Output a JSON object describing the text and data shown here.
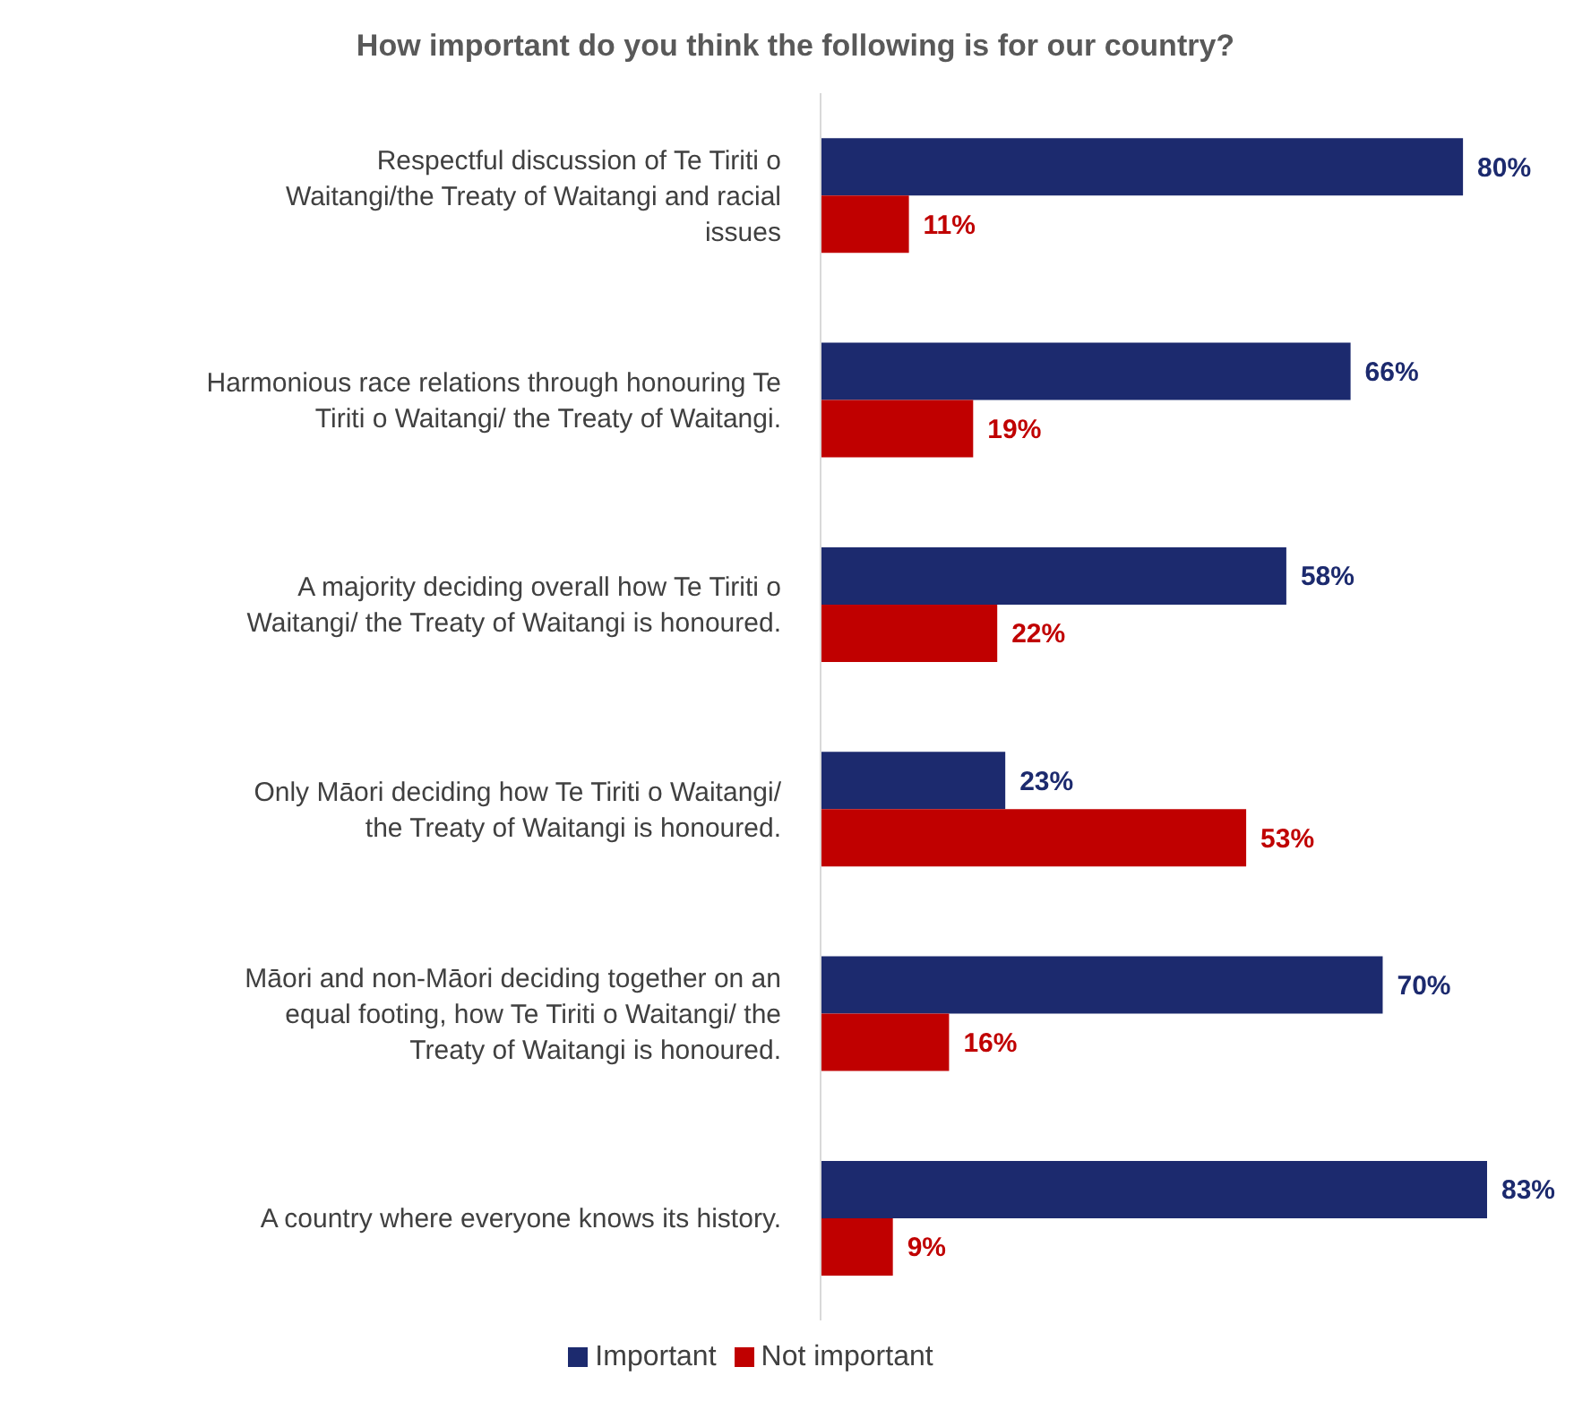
{
  "chart_data": {
    "type": "bar",
    "orientation": "horizontal",
    "title": "How important do you think the following is for our country?",
    "categories": [
      "Respectful discussion of Te Tiriti o Waitangi/the Treaty of Waitangi and racial issues",
      "Harmonious race relations through honouring Te Tiriti o Waitangi/ the Treaty of Waitangi.",
      "A majority deciding overall how Te Tiriti o Waitangi/ the Treaty of Waitangi is honoured.",
      "Only Māori deciding how Te Tiriti o Waitangi/ the Treaty of Waitangi is honoured.",
      "Māori and non-Māori deciding together on an equal footing, how Te Tiriti o Waitangi/ the Treaty of Waitangi is honoured.",
      "A country where everyone knows its history."
    ],
    "series": [
      {
        "name": "Important",
        "color": "#1c2a6e",
        "values": [
          80,
          66,
          58,
          23,
          70,
          83
        ],
        "value_labels": [
          "80%",
          "66%",
          "58%",
          "23%",
          "70%",
          "83%"
        ]
      },
      {
        "name": "Not important",
        "color": "#c00000",
        "values": [
          11,
          19,
          22,
          53,
          16,
          9
        ],
        "value_labels": [
          "11%",
          "19%",
          "22%",
          "53%",
          "16%",
          "9%"
        ]
      }
    ],
    "legend": "bottom"
  }
}
